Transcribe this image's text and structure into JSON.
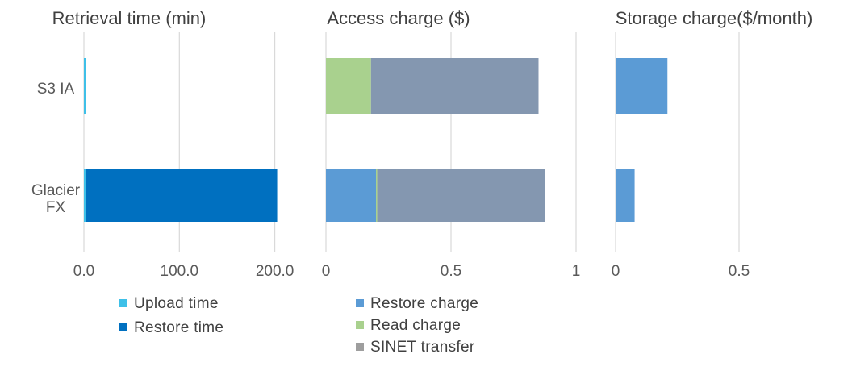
{
  "chart_data": [
    {
      "type": "bar",
      "orientation": "horizontal",
      "stacked": true,
      "title": "Retrieval time (min)",
      "categories": [
        "S3 IA",
        "Glacier\nFX"
      ],
      "series": [
        {
          "name": "Upload time",
          "values": [
            2.5,
            2.5
          ],
          "color": "#3EC0E8"
        },
        {
          "name": "Restore time",
          "values": [
            0,
            200
          ],
          "color": "#0070C0"
        }
      ],
      "xlim": [
        0,
        210
      ],
      "ticks": [
        0,
        100,
        200
      ],
      "tick_labels": [
        "0.0",
        "100.0",
        "200.0"
      ],
      "grid": true
    },
    {
      "type": "bar",
      "orientation": "horizontal",
      "stacked": true,
      "title": "Access charge ($)",
      "categories": [
        "S3 IA",
        "Glacier FX"
      ],
      "series": [
        {
          "name": "Restore charge",
          "values": [
            0,
            0.2
          ],
          "color": "#5B9BD5"
        },
        {
          "name": "Read charge",
          "values": [
            0.18,
            0.005
          ],
          "color": "#A9D18E"
        },
        {
          "name": "SINET transfer",
          "values": [
            0.67,
            0.67
          ],
          "color": "#8497B0"
        }
      ],
      "xlim": [
        0,
        1
      ],
      "ticks": [
        0,
        0.5,
        1
      ],
      "tick_labels": [
        "0",
        "0.5",
        "1"
      ],
      "grid": true
    },
    {
      "type": "bar",
      "orientation": "horizontal",
      "title": "Storage charge($/month)",
      "categories": [
        "S3 IA",
        "Glacier FX"
      ],
      "series": [
        {
          "name": "Storage charge",
          "values": [
            0.21,
            0.077
          ],
          "color": "#5B9BD5"
        }
      ],
      "xlim": [
        0,
        0.5
      ],
      "ticks": [
        0,
        0.5
      ],
      "tick_labels": [
        "0",
        "0.5"
      ],
      "grid": true
    }
  ],
  "legends": [
    {
      "items": [
        {
          "label": "Upload time",
          "color": "#3EC0E8"
        },
        {
          "label": "Restore time",
          "color": "#0070C0"
        }
      ]
    },
    {
      "items": [
        {
          "label": "Restore charge",
          "color": "#5B9BD5"
        },
        {
          "label": "Read charge",
          "color": "#A9D18E"
        },
        {
          "label": "SINET transfer",
          "color": "#9E9E9E"
        }
      ]
    }
  ]
}
